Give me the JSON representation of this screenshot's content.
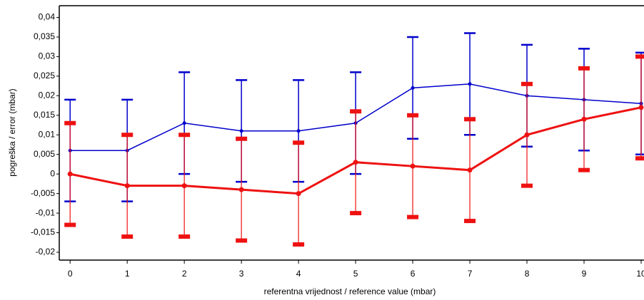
{
  "chart_data": {
    "type": "line",
    "y_label": "pogreška / error (mbar)",
    "x_label": "referentna vrijednost / reference value (mbar)",
    "x": [
      0,
      1,
      2,
      3,
      4,
      5,
      6,
      7,
      8,
      9,
      10
    ],
    "series": [
      {
        "color": "#0000cc",
        "values": [
          0.006,
          0.006,
          0.013,
          0.011,
          0.011,
          0.013,
          0.022,
          0.023,
          0.02,
          0.019,
          0.018
        ],
        "errors": [
          0.013,
          0.013,
          0.013,
          0.013,
          0.013,
          0.013,
          0.013,
          0.013,
          0.013,
          0.013,
          0.013
        ]
      },
      {
        "color": "#ee1111",
        "values": [
          0,
          -0.003,
          -0.003,
          -0.004,
          -0.005,
          0.003,
          0.002,
          0.001,
          0.01,
          0.014,
          0.017
        ],
        "errors": [
          0.013,
          0.013,
          0.013,
          0.013,
          0.013,
          0.013,
          0.013,
          0.013,
          0.013,
          0.013,
          0.013
        ]
      }
    ],
    "xlim": [
      -0.19,
      10.05
    ],
    "ylim": [
      -0.022,
      0.043
    ],
    "xticks": [
      0,
      1,
      2,
      3,
      4,
      5,
      6,
      7,
      8,
      9,
      10
    ],
    "yticks": [
      {
        "value": -0.02,
        "label": "-0,02"
      },
      {
        "value": -0.015,
        "label": "-0,015"
      },
      {
        "value": -0.01,
        "label": "-0,01"
      },
      {
        "value": -0.005,
        "label": "-0,005"
      },
      0,
      {
        "value": 0.005,
        "label": "0,005"
      },
      {
        "value": 0.01,
        "label": "0,01"
      },
      {
        "value": 0.015,
        "label": "0,015"
      },
      {
        "value": 0.02,
        "label": "0,02"
      },
      {
        "value": 0.025,
        "label": "0,025"
      },
      {
        "value": 0.03,
        "label": "0,03"
      },
      {
        "value": 0.035,
        "label": "0,035"
      },
      {
        "value": 0.04,
        "label": "0,04"
      }
    ],
    "grid": false
  }
}
